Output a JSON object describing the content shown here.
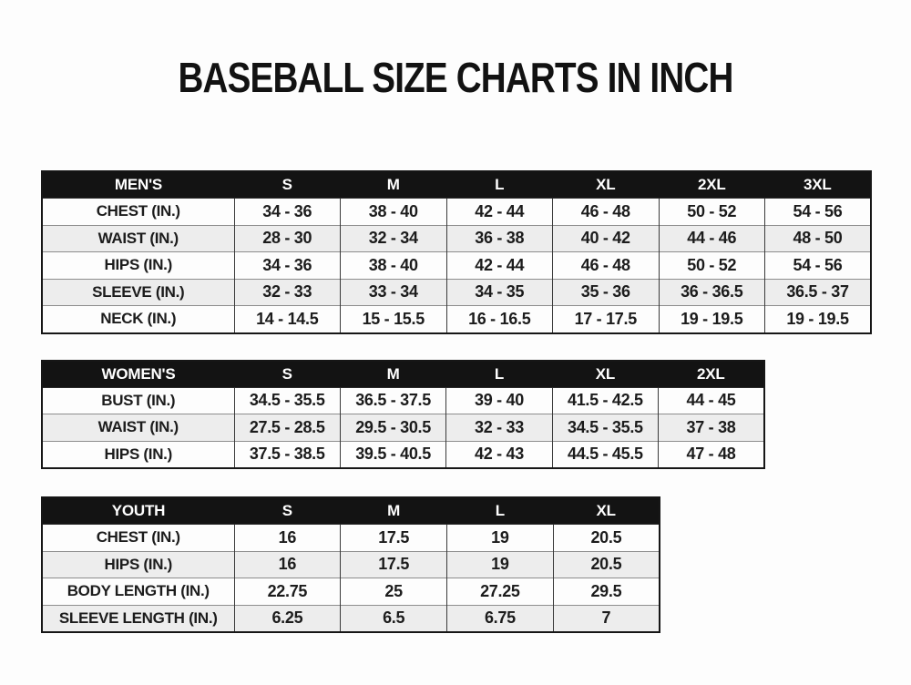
{
  "page": {
    "title": "BASEBALL SIZE CHARTS IN INCH"
  },
  "colors": {
    "header_bg": "#131313",
    "header_text": "#ffffff",
    "stripe_row_bg": "#ededed",
    "table_border": "#161616",
    "text": "#1c1c1c",
    "page_bg": "#fdfdfd"
  },
  "chart_data": [
    {
      "type": "table",
      "id": "mens",
      "title": "MEN'S",
      "unit": "inches",
      "header": [
        "MEN'S",
        "S",
        "M",
        "L",
        "XL",
        "2XL",
        "3XL"
      ],
      "rows": [
        [
          "CHEST (IN.)",
          "34 - 36",
          "38 - 40",
          "42 - 44",
          "46 - 48",
          "50 - 52",
          "54 - 56"
        ],
        [
          "WAIST (IN.)",
          "28 - 30",
          "32 - 34",
          "36 - 38",
          "40 - 42",
          "44 - 46",
          "48 - 50"
        ],
        [
          "HIPS (IN.)",
          "34 - 36",
          "38 - 40",
          "42 - 44",
          "46 - 48",
          "50 - 52",
          "54 - 56"
        ],
        [
          "SLEEVE (IN.)",
          "32 - 33",
          "33 - 34",
          "34 - 35",
          "35 - 36",
          "36 - 36.5",
          "36.5 - 37"
        ],
        [
          "NECK (IN.)",
          "14 - 14.5",
          "15 - 15.5",
          "16 - 16.5",
          "17 - 17.5",
          "19 - 19.5",
          "19 - 19.5"
        ]
      ]
    },
    {
      "type": "table",
      "id": "womens",
      "title": "WOMEN'S",
      "unit": "inches",
      "header": [
        "WOMEN'S",
        "S",
        "M",
        "L",
        "XL",
        "2XL"
      ],
      "rows": [
        [
          "BUST (IN.)",
          "34.5 - 35.5",
          "36.5 - 37.5",
          "39 - 40",
          "41.5 - 42.5",
          "44 - 45"
        ],
        [
          "WAIST (IN.)",
          "27.5 - 28.5",
          "29.5 - 30.5",
          "32 - 33",
          "34.5 - 35.5",
          "37 - 38"
        ],
        [
          "HIPS (IN.)",
          "37.5 - 38.5",
          "39.5 - 40.5",
          "42 - 43",
          "44.5 - 45.5",
          "47 - 48"
        ]
      ]
    },
    {
      "type": "table",
      "id": "youth",
      "title": "YOUTH",
      "unit": "inches",
      "header": [
        "YOUTH",
        "S",
        "M",
        "L",
        "XL"
      ],
      "rows": [
        [
          "CHEST (IN.)",
          "16",
          "17.5",
          "19",
          "20.5"
        ],
        [
          "HIPS (IN.)",
          "16",
          "17.5",
          "19",
          "20.5"
        ],
        [
          "BODY LENGTH (IN.)",
          "22.75",
          "25",
          "27.25",
          "29.5"
        ],
        [
          "SLEEVE LENGTH (IN.)",
          "6.25",
          "6.5",
          "6.75",
          "7"
        ]
      ]
    }
  ]
}
